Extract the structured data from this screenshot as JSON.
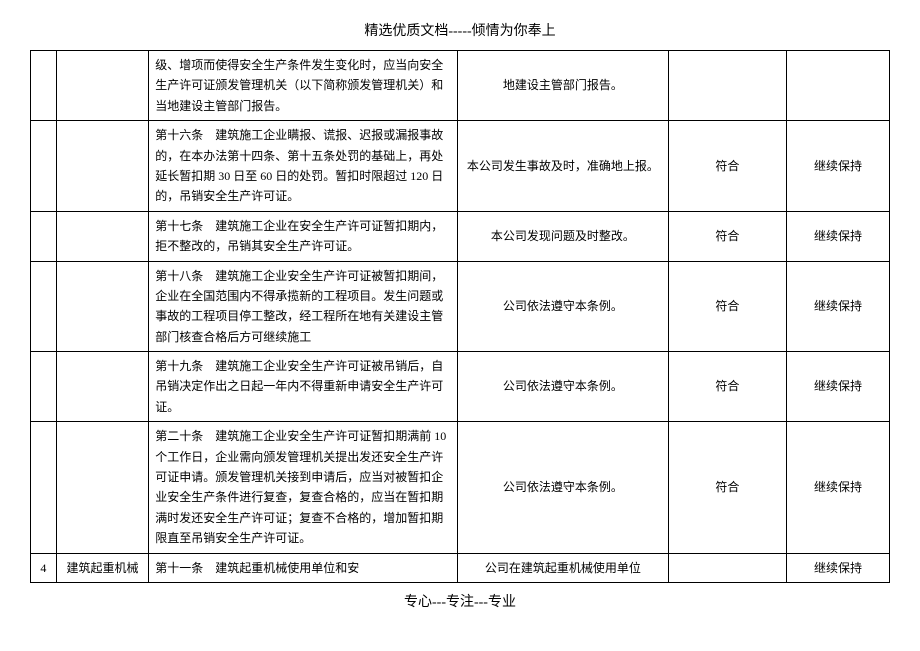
{
  "header": "精选优质文档-----倾情为你奉上",
  "footer": "专心---专注---专业",
  "rows": [
    {
      "num": "",
      "cat": "",
      "article": "级、增项而使得安全生产条件发生变化时，应当向安全生产许可证颁发管理机关（以下简称颁发管理机关）和当地建设主管部门报告。",
      "status": "地建设主管部门报告。",
      "result": "",
      "action": ""
    },
    {
      "num": "",
      "cat": "",
      "article": "第十六条　建筑施工企业瞒报、谎报、迟报或漏报事故的，在本办法第十四条、第十五条处罚的基础上，再处延长暂扣期 30 日至 60 日的处罚。暂扣时限超过 120 日的，吊销安全生产许可证。",
      "status": "本公司发生事故及时，准确地上报。",
      "result": "符合",
      "action": "继续保持"
    },
    {
      "num": "",
      "cat": "",
      "article": "第十七条　建筑施工企业在安全生产许可证暂扣期内，拒不整改的，吊销其安全生产许可证。",
      "status": "本公司发现问题及时整改。",
      "result": "符合",
      "action": "继续保持"
    },
    {
      "num": "",
      "cat": "",
      "article": "第十八条　建筑施工企业安全生产许可证被暂扣期间，企业在全国范围内不得承揽新的工程项目。发生问题或事故的工程项目停工整改，经工程所在地有关建设主管部门核查合格后方可继续施工",
      "status": "公司依法遵守本条例。",
      "result": "符合",
      "action": "继续保持"
    },
    {
      "num": "",
      "cat": "",
      "article": "第十九条　建筑施工企业安全生产许可证被吊销后，自吊销决定作出之日起一年内不得重新申请安全生产许可证。",
      "status": "公司依法遵守本条例。",
      "result": "符合",
      "action": "继续保持"
    },
    {
      "num": "",
      "cat": "",
      "article": "第二十条　建筑施工企业安全生产许可证暂扣期满前 10 个工作日，企业需向颁发管理机关提出发还安全生产许可证申请。颁发管理机关接到申请后，应当对被暂扣企业安全生产条件进行复查，复查合格的，应当在暂扣期满时发还安全生产许可证；复查不合格的，增加暂扣期限直至吊销安全生产许可证。",
      "status": "公司依法遵守本条例。",
      "result": "符合",
      "action": "继续保持"
    },
    {
      "num": "4",
      "cat": "建筑起重机械",
      "article": "第十一条　建筑起重机械使用单位和安",
      "status": "公司在建筑起重机械使用单位",
      "result": "",
      "action": "继续保持"
    }
  ]
}
